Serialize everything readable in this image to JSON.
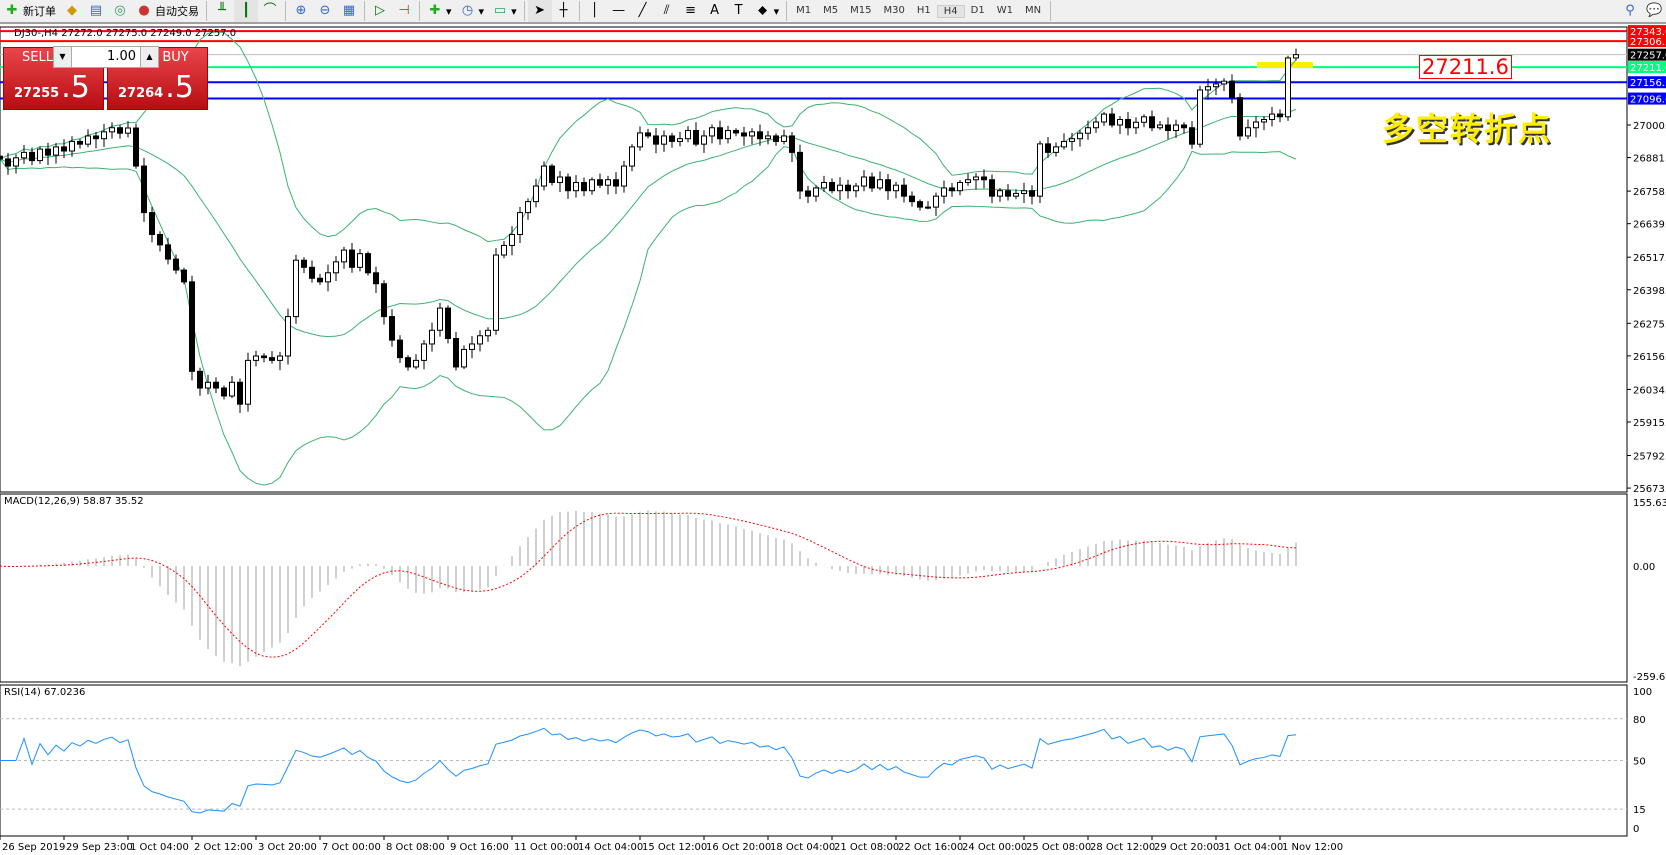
{
  "toolbar": {
    "new_order": "新订单",
    "auto_trading": "自动交易",
    "timeframes": [
      "M1",
      "M5",
      "M15",
      "M30",
      "H1",
      "H4",
      "D1",
      "W1",
      "MN"
    ],
    "active_timeframe": "H4"
  },
  "chart": {
    "header": "DJ30-,H4  27272.0 27275.0 27249.0 27257.0",
    "macd_header": "MACD(12,26,9) 58.87 35.52",
    "rsi_header": "RSI(14) 67.0236",
    "annotation_price": "27211.6",
    "annotation_text": "多空转折点"
  },
  "trade_panel": {
    "sell_label": "SELL",
    "buy_label": "BUY",
    "lots": "1.00",
    "sell_price_main": "27255",
    "sell_price_frac": ".5",
    "buy_price_main": "27264",
    "buy_price_frac": ".5"
  },
  "chart_data": {
    "type": "candlestick",
    "symbol": "DJ30-",
    "timeframe": "H4",
    "price_ticks": [
      "27000.0",
      "26881.0",
      "26758.5",
      "26639.5",
      "26517.0",
      "26398.0",
      "26275.5",
      "26156.5",
      "26034.0",
      "25915.0",
      "25792.5",
      "25673.5"
    ],
    "macd_ticks": [
      "155.63",
      "0.00",
      "-259.63"
    ],
    "rsi_ticks": [
      "100",
      "80",
      "50",
      "15",
      "0"
    ],
    "x_ticks": [
      "26 Sep 2019",
      "29 Sep 23:00",
      "1 Oct 04:00",
      "2 Oct 12:00",
      "3 Oct 20:00",
      "7 Oct 00:00",
      "8 Oct 08:00",
      "9 Oct 16:00",
      "11 Oct 00:00",
      "14 Oct 04:00",
      "15 Oct 12:00",
      "16 Oct 20:00",
      "18 Oct 04:00",
      "21 Oct 08:00",
      "22 Oct 16:00",
      "24 Oct 00:00",
      "25 Oct 08:00",
      "28 Oct 12:00",
      "29 Oct 20:00",
      "31 Oct 04:00",
      "1 Nov 12:00"
    ],
    "levels": [
      {
        "price": "27343.0",
        "color": "#ff0000"
      },
      {
        "price": "27306.5",
        "color": "#ff0000"
      },
      {
        "price": "27257.0",
        "color": "#c0c0c0",
        "label_bg": "#000000"
      },
      {
        "price": "27211.6",
        "color": "#00ff7f"
      },
      {
        "price": "27156.3",
        "color": "#0000ff"
      },
      {
        "price": "27096.6",
        "color": "#0000ff"
      }
    ],
    "closes": [
      26876,
      26850,
      26880,
      26900,
      26870,
      26912,
      26890,
      26920,
      26905,
      26940,
      26930,
      26960,
      26950,
      26975,
      26990,
      26970,
      26989,
      26850,
      26680,
      26600,
      26562,
      26510,
      26470,
      26427,
      26100,
      26039,
      26060,
      26039,
      26010,
      26060,
      25980,
      26140,
      26156,
      26150,
      26140,
      26156,
      26300,
      26506,
      26480,
      26440,
      26427,
      26460,
      26500,
      26543,
      26480,
      26530,
      26460,
      26420,
      26300,
      26214,
      26150,
      26116,
      26140,
      26200,
      26250,
      26331,
      26220,
      26116,
      26180,
      26200,
      26230,
      26250,
      26525,
      26560,
      26600,
      26680,
      26720,
      26777,
      26850,
      26790,
      26810,
      26760,
      26790,
      26760,
      26800,
      26780,
      26800,
      26777,
      26850,
      26920,
      26971,
      26960,
      26930,
      26960,
      26940,
      26950,
      26980,
      26930,
      26960,
      26990,
      26950,
      26980,
      26971,
      26960,
      26975,
      26950,
      26960,
      26940,
      26960,
      26900,
      26759,
      26740,
      26770,
      26790,
      26760,
      26780,
      26760,
      26777,
      26810,
      26770,
      26800,
      26760,
      26780,
      26740,
      26720,
      26700,
      26700,
      26740,
      26770,
      26760,
      26790,
      26800,
      26810,
      26800,
      26740,
      26760,
      26740,
      26750,
      26760,
      26740,
      26931,
      26900,
      26920,
      26940,
      26950,
      26970,
      26990,
      27011,
      27040,
      27000,
      27020,
      26990,
      27010,
      27030,
      26990,
      27000,
      26980,
      27000,
      26990,
      26930,
      27128,
      27140,
      27150,
      27160,
      27100,
      26960,
      26990,
      27011,
      27020,
      27040,
      27030,
      27245,
      27257
    ],
    "indicators": {
      "bollinger": "20,2",
      "macd": "12,26,9",
      "rsi": "14"
    },
    "colors": {
      "bands": "#3cb371",
      "macd_hist": "#c0c0c0",
      "macd_signal": "#ff0000",
      "rsi": "#1e90ff"
    }
  }
}
